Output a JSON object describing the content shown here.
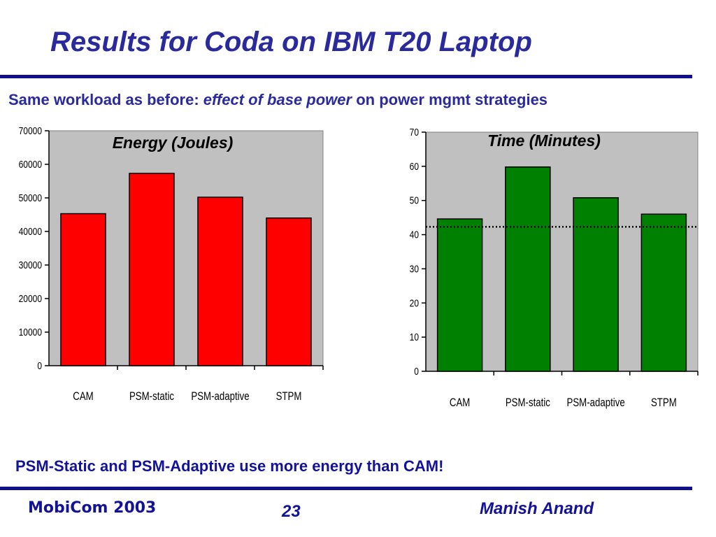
{
  "slide": {
    "title": "Results for Coda on IBM T20 Laptop",
    "subtitle_prefix": "Same workload as before: ",
    "subtitle_emphasis": "effect of base power",
    "subtitle_suffix": " on power mgmt strategies",
    "bottom_note": "PSM-Static and PSM-Adaptive use more energy than CAM!",
    "footer_left": "MobiCom 2003",
    "footer_center": "23",
    "footer_right": "Manish Anand"
  },
  "colors": {
    "title": "#2a2a9c",
    "rule": "#10108a",
    "plot_bg": "#c0c0c0",
    "energy_bar": "#ff0000",
    "time_bar": "#008000"
  },
  "chart_data": [
    {
      "type": "bar",
      "title": "Energy (Joules)",
      "categories": [
        "CAM",
        "PSM-static",
        "PSM-adaptive",
        "STPM"
      ],
      "values": [
        45300,
        57300,
        50200,
        44000
      ],
      "ylim": [
        0,
        70000
      ],
      "yticks": [
        0,
        10000,
        20000,
        30000,
        40000,
        50000,
        60000,
        70000
      ],
      "xlabel": "",
      "ylabel": "",
      "grid": false,
      "legend": "none"
    },
    {
      "type": "bar",
      "title": "Time (Minutes)",
      "categories": [
        "CAM",
        "PSM-static",
        "PSM-adaptive",
        "STPM"
      ],
      "values": [
        44.6,
        59.8,
        50.8,
        46.0
      ],
      "ylim": [
        0,
        70
      ],
      "yticks": [
        0,
        10,
        20,
        30,
        40,
        50,
        60,
        70
      ],
      "reference_line": 42.3,
      "xlabel": "",
      "ylabel": "",
      "grid": false,
      "legend": "none"
    }
  ]
}
